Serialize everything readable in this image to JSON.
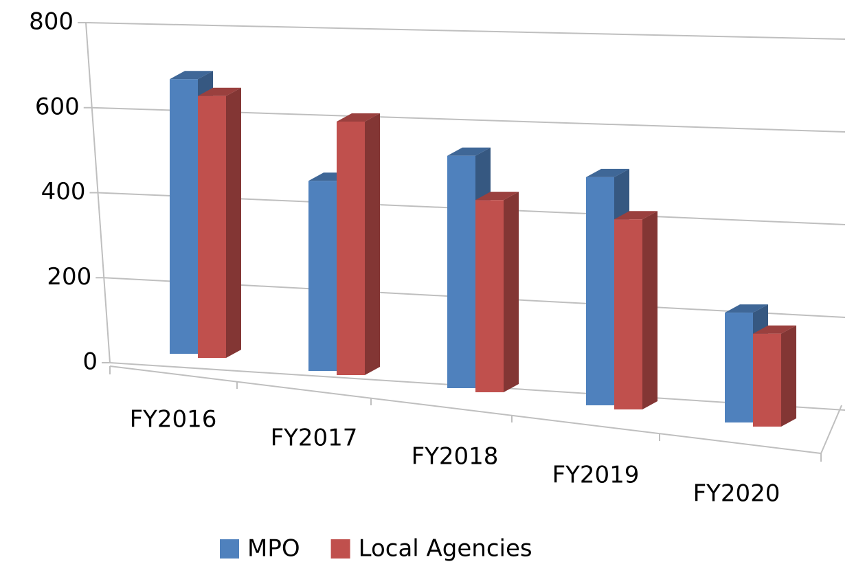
{
  "chart_data": {
    "type": "bar3d",
    "categories": [
      "FY2016",
      "FY2017",
      "FY2018",
      "FY2019",
      "FY2020"
    ],
    "series": [
      {
        "name": "MPO",
        "color": "#4f81bd",
        "values": [
          650,
          450,
          550,
          540,
          260
        ]
      },
      {
        "name": "Local Agencies",
        "color": "#c0504d",
        "values": [
          620,
          600,
          455,
          450,
          220
        ]
      }
    ],
    "ylim": [
      0,
      800
    ],
    "yticks": [
      0,
      200,
      400,
      600,
      800
    ],
    "grid": true,
    "legend": "bottom"
  }
}
